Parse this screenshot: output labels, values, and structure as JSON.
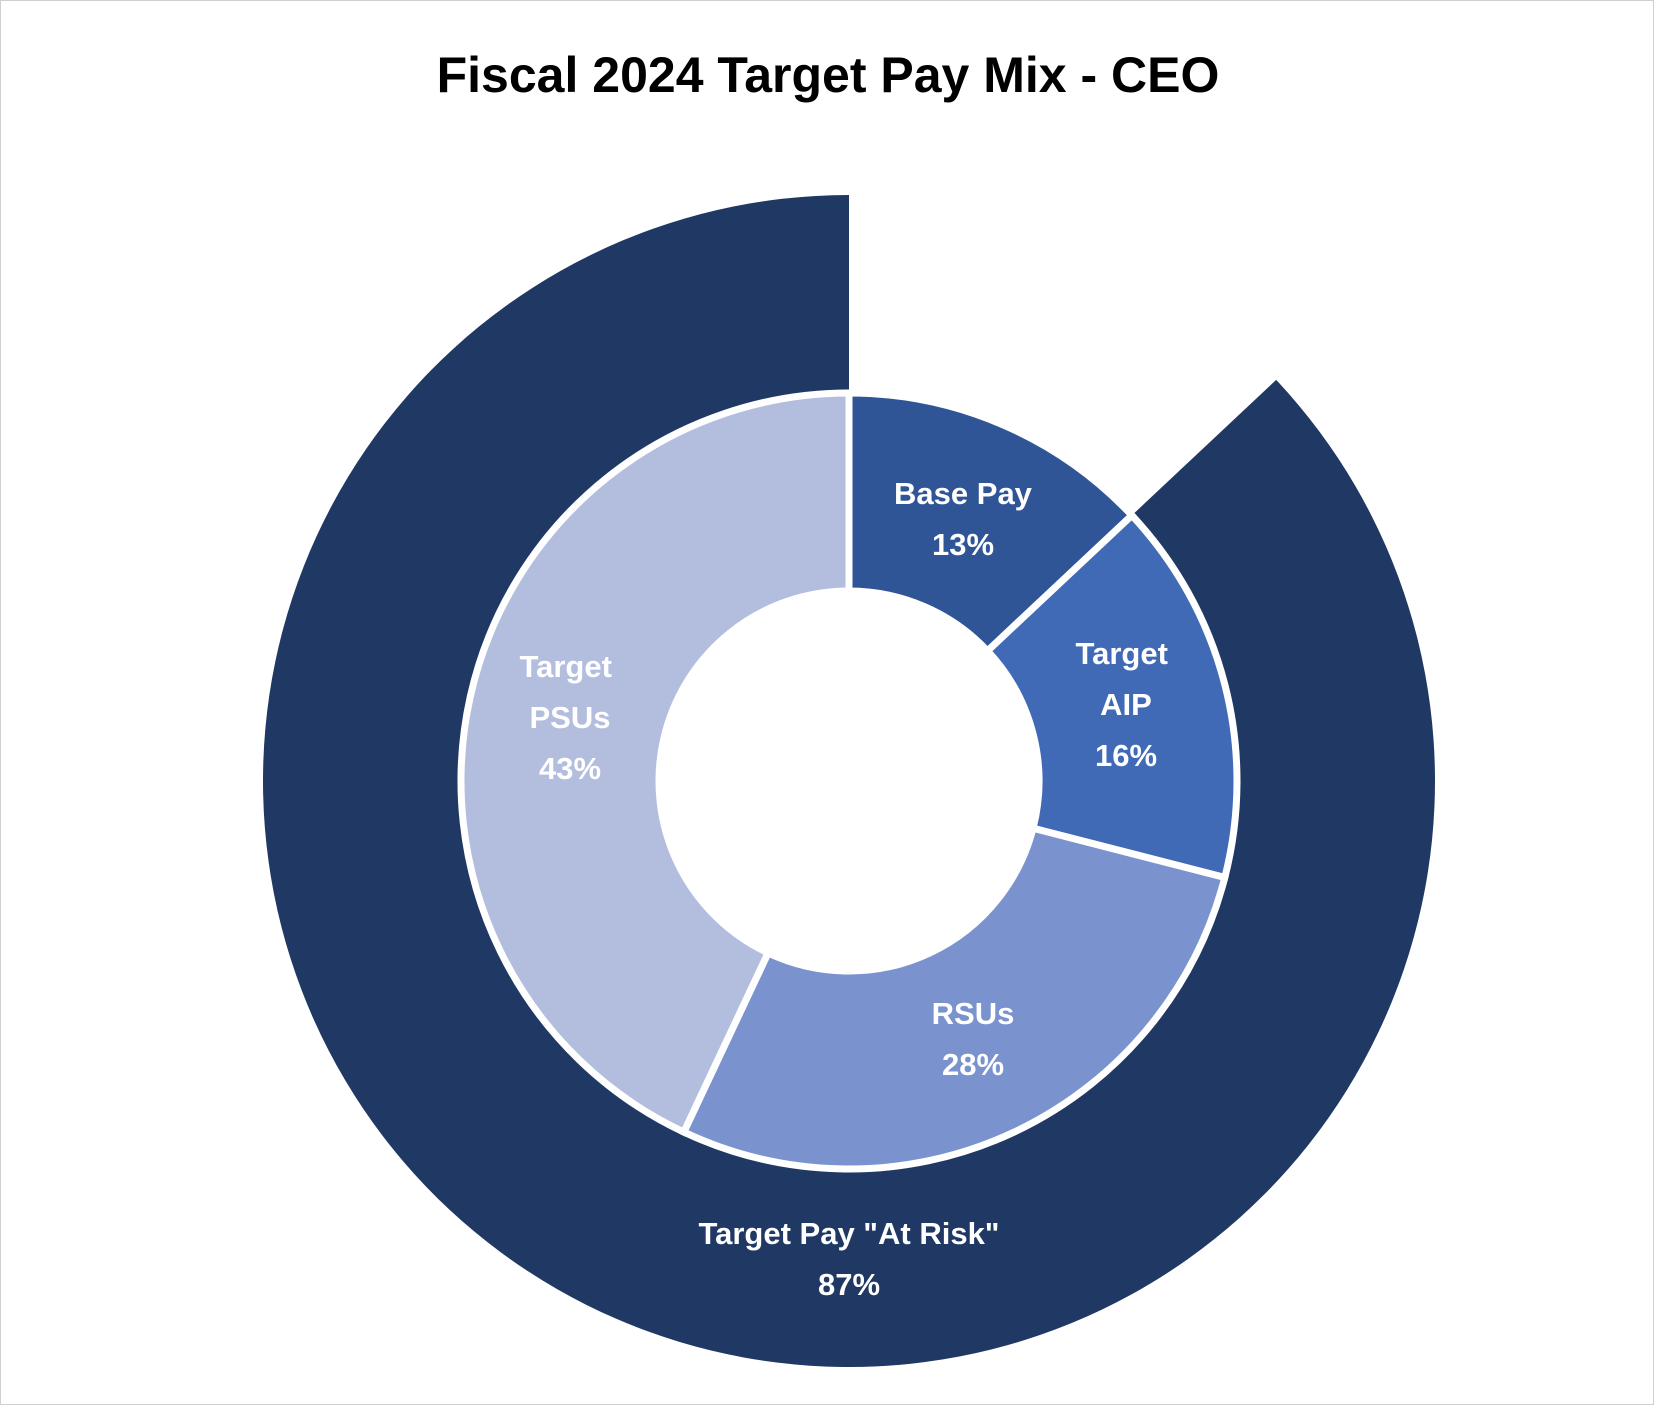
{
  "chart_data": {
    "type": "donut",
    "title": "Fiscal 2024 Target Pay Mix - CEO",
    "categories": [
      "Base Pay",
      "Target AIP",
      "RSUs",
      "Target PSUs"
    ],
    "values": [
      13,
      16,
      28,
      43
    ],
    "value_labels": [
      "13%",
      "16%",
      "28%",
      "43%"
    ],
    "colors": [
      "#2f5597",
      "#416ab6",
      "#7a93cf",
      "#b3bedf"
    ],
    "total": {
      "label": "Target Pay \"At Risk\"",
      "value": 87,
      "value_label": "87%",
      "color": "#203864"
    }
  }
}
